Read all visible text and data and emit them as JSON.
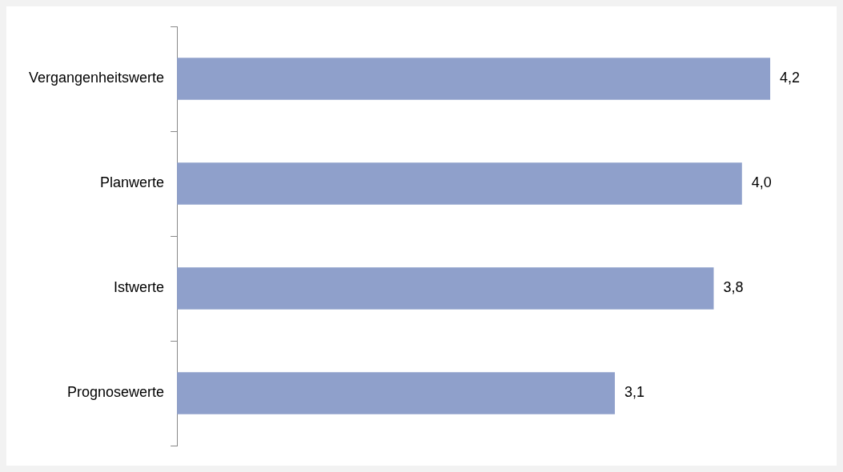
{
  "chart_data": {
    "type": "bar",
    "orientation": "horizontal",
    "categories": [
      "Vergangenheitswerte",
      "Planwerte",
      "Istwerte",
      "Prognosewerte"
    ],
    "values": [
      4.2,
      4.0,
      3.8,
      3.1
    ],
    "value_labels": [
      "4,2",
      "4,0",
      "3,8",
      "3,1"
    ],
    "color": "#8fa0cb",
    "tick_labels": "y"
  }
}
